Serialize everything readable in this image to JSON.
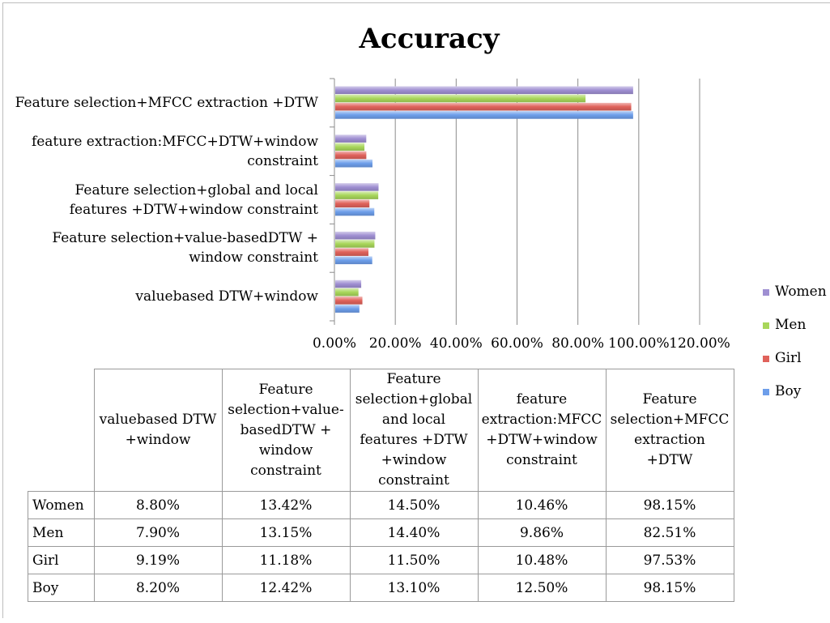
{
  "chart_data": {
    "type": "bar",
    "orientation": "horizontal",
    "title": "Accuracy",
    "categories": [
      "valuebased DTW+window",
      "Feature selection+value-basedDTW + window constraint",
      "Feature selection+global and local features +DTW+window constraint",
      "feature extraction:MFCC+DTW+window constraint",
      "Feature selection+MFCC extraction +DTW"
    ],
    "category_label_lines": [
      [
        "valuebased DTW+window"
      ],
      [
        "Feature selection+value-basedDTW +",
        "window constraint"
      ],
      [
        "Feature selection+global and local",
        "features +DTW+window constraint"
      ],
      [
        "feature extraction:MFCC+DTW+window",
        "constraint"
      ],
      [
        "Feature selection+MFCC extraction +DTW"
      ]
    ],
    "series": [
      {
        "name": "Women",
        "color": "#9f8fd2",
        "values": [
          8.8,
          13.42,
          14.5,
          10.46,
          98.15
        ]
      },
      {
        "name": "Men",
        "color": "#a8d65a",
        "values": [
          7.9,
          13.15,
          14.4,
          9.86,
          82.51
        ]
      },
      {
        "name": "Girl",
        "color": "#e0625b",
        "values": [
          9.19,
          11.18,
          11.5,
          10.48,
          97.53
        ]
      },
      {
        "name": "Boy",
        "color": "#6d9eea",
        "values": [
          8.2,
          12.42,
          13.1,
          12.5,
          98.15
        ]
      }
    ],
    "xlim": [
      0,
      120
    ],
    "ticks": [
      "0.00%",
      "20.00%",
      "40.00%",
      "60.00%",
      "80.00%",
      "100.00%",
      "120.00%"
    ],
    "grid": true,
    "legend": "right",
    "table": {
      "col_headers": [
        [
          "valuebased DTW",
          "+window"
        ],
        [
          "Feature",
          "selection+value-",
          "basedDTW +",
          "window",
          "constraint"
        ],
        [
          "Feature",
          "selection+global",
          "and local",
          "features +DTW",
          "+window",
          "constraint"
        ],
        [
          "feature",
          "extraction:MFCC",
          "+DTW+window",
          "constraint"
        ],
        [
          "Feature",
          "selection+MFCC",
          "extraction",
          "+DTW"
        ]
      ],
      "rows": [
        {
          "name": "Women",
          "cells": [
            "8.80%",
            "13.42%",
            "14.50%",
            "10.46%",
            "98.15%"
          ]
        },
        {
          "name": "Men",
          "cells": [
            "7.90%",
            "13.15%",
            "14.40%",
            "9.86%",
            "82.51%"
          ]
        },
        {
          "name": "Girl",
          "cells": [
            "9.19%",
            "11.18%",
            "11.50%",
            "10.48%",
            "97.53%"
          ]
        },
        {
          "name": "Boy",
          "cells": [
            "8.20%",
            "12.42%",
            "13.10%",
            "12.50%",
            "98.15%"
          ]
        }
      ]
    }
  }
}
